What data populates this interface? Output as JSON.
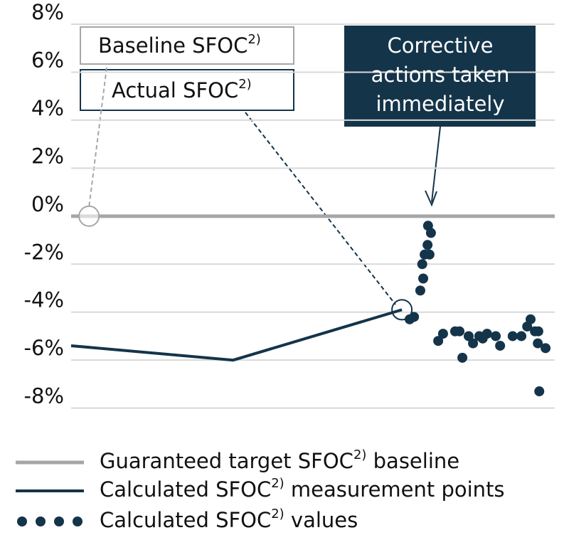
{
  "chart_data": {
    "type": "line",
    "ylim": [
      -8.9,
      8.8
    ],
    "yticks": [
      {
        "value": 8,
        "label": "8%"
      },
      {
        "value": 6,
        "label": "6%"
      },
      {
        "value": 4,
        "label": "4%"
      },
      {
        "value": 2,
        "label": "2%"
      },
      {
        "value": 0,
        "label": "0%"
      },
      {
        "value": -2,
        "label": "-2%"
      },
      {
        "value": -4,
        "label": "-4%"
      },
      {
        "value": -6,
        "label": "-6%"
      },
      {
        "value": -8,
        "label": "-8%"
      }
    ],
    "xlim": [
      0,
      100
    ],
    "grid": true,
    "series": [
      {
        "name": "Guaranteed target SFOC2) baseline",
        "color": "#a6a6a6",
        "kind": "line",
        "x": [
          0,
          100
        ],
        "values": [
          0,
          0
        ]
      },
      {
        "name": "Calculated SFOC2) measurement points",
        "color": "#14344a",
        "kind": "line",
        "x": [
          0,
          33.5,
          68.4
        ],
        "values": [
          -5.4,
          -6.0,
          -3.9
        ]
      },
      {
        "name": "Calculated SFOC2) values",
        "color": "#14344a",
        "kind": "scatter",
        "x": [
          70.0,
          70.9,
          72.2,
          72.8,
          72.6,
          73.1,
          74.1,
          73.7,
          74.4,
          73.8,
          75.9,
          76.9,
          79.4,
          80.3,
          80.9,
          82.2,
          83.1,
          84.4,
          85.1,
          86.0,
          87.8,
          88.7,
          91.3,
          93.1,
          94.3,
          95.0,
          95.9,
          96.6,
          96.5,
          98.1,
          96.8
        ],
        "values": [
          -4.3,
          -4.2,
          -3.1,
          -2.6,
          -2.0,
          -1.6,
          -1.6,
          -1.2,
          -0.7,
          -0.4,
          -5.2,
          -4.9,
          -4.8,
          -4.8,
          -5.9,
          -5.0,
          -5.3,
          -5.0,
          -5.1,
          -4.9,
          -5.0,
          -5.4,
          -5.0,
          -5.0,
          -4.6,
          -4.3,
          -4.8,
          -4.8,
          -5.3,
          -5.5,
          -7.3
        ]
      }
    ],
    "annotations": [
      {
        "text": "Baseline SFOC2)",
        "x": 3.7,
        "y": 0
      },
      {
        "text": "Actual SFOC2)",
        "x": 68.4,
        "y": -3.9
      },
      {
        "lines": [
          "Corrective",
          "actions taken",
          "immediately"
        ]
      }
    ]
  }
}
